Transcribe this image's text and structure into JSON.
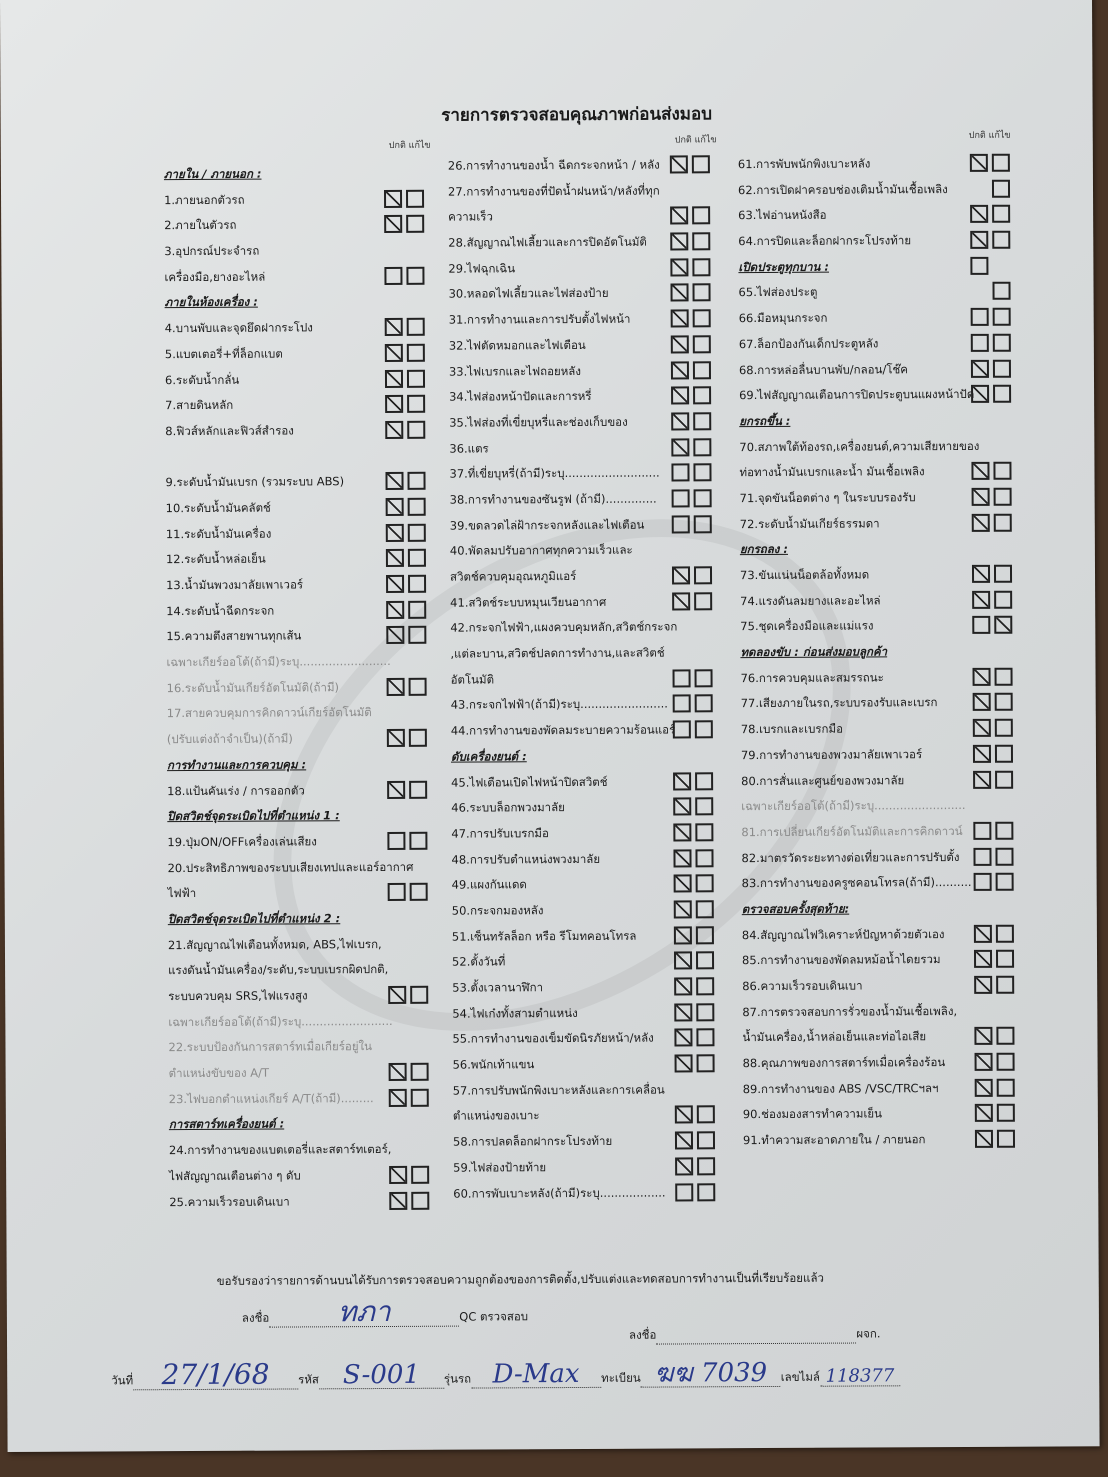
{
  "title": "รายการตรวจสอบคุณภาพก่อนส่งมอบ",
  "box_header": "ปกติ  แก้ไข",
  "columns": [
    {
      "rows": [
        {
          "t": "ภายใน / ภายนอก :",
          "s": "h",
          "b": null
        },
        {
          "t": "1.ภายนอกตัวรถ",
          "s": "",
          "b": [
            true,
            false
          ]
        },
        {
          "t": "2.ภายในตัวรถ",
          "s": "",
          "b": [
            true,
            false
          ]
        },
        {
          "t": "3.อุปกรณ์ประจำรถ",
          "s": "",
          "b": null
        },
        {
          "t": "เครื่องมือ,ยางอะไหล่",
          "s": "",
          "b": [
            false,
            false
          ]
        },
        {
          "t": "ภายในห้องเครื่อง :",
          "s": "h",
          "b": null
        },
        {
          "t": "4.บานพับและจุดยึดฝากระโปง",
          "s": "",
          "b": [
            true,
            false
          ]
        },
        {
          "t": "5.แบตเตอรี่+ที่ล็อกแบต",
          "s": "",
          "b": [
            true,
            false
          ]
        },
        {
          "t": "6.ระดับน้ำกลั่น",
          "s": "",
          "b": [
            true,
            false
          ]
        },
        {
          "t": "7.สายดินหลัก",
          "s": "",
          "b": [
            true,
            false
          ]
        },
        {
          "t": "8.ฟิวส์หลักและฟิวส์สำรอง",
          "s": "",
          "b": [
            true,
            false
          ]
        },
        {
          "t": "",
          "s": "",
          "b": null
        },
        {
          "t": "9.ระดับน้ำมันเบรก (รวมระบบ ABS)",
          "s": "",
          "b": [
            true,
            false
          ]
        },
        {
          "t": "10.ระดับน้ำมันคลัตช์",
          "s": "",
          "b": [
            true,
            false
          ]
        },
        {
          "t": "11.ระดับน้ำมันเครื่อง",
          "s": "",
          "b": [
            true,
            false
          ]
        },
        {
          "t": "12.ระดับน้ำหล่อเย็น",
          "s": "",
          "b": [
            true,
            false
          ]
        },
        {
          "t": "13.น้ำมันพวงมาลัยเพาเวอร์",
          "s": "",
          "b": [
            true,
            false
          ]
        },
        {
          "t": "14.ระดับน้ำฉีดกระจก",
          "s": "",
          "b": [
            true,
            false
          ]
        },
        {
          "t": "15.ความตึงสายพานทุกเส้น",
          "s": "",
          "b": [
            true,
            false
          ]
        },
        {
          "t": "เฉพาะเกียร์ออโต้(ถ้ามี)ระบุ.........................",
          "s": "g",
          "b": null
        },
        {
          "t": "16.ระดับน้ำมันเกียร์อัตโนมัติ(ถ้ามี)",
          "s": "g",
          "b": [
            true,
            false
          ]
        },
        {
          "t": "17.สายควบคุมการคิกดาวน์เกียร์อัตโนมัติ",
          "s": "g",
          "b": null
        },
        {
          "t": "(ปรับแต่งถ้าจำเป็น)(ถ้ามี)",
          "s": "g",
          "b": [
            true,
            false
          ]
        },
        {
          "t": "การทำงานและการควบคุม :",
          "s": "h",
          "b": null
        },
        {
          "t": "18.แป้นคันเร่ง / การออกตัว",
          "s": "",
          "b": [
            true,
            false
          ]
        },
        {
          "t": "ปิดสวิตช์จุดระเบิดไปที่ตำแหน่ง 1 :",
          "s": "h",
          "b": null
        },
        {
          "t": "19.ปุ่มON/OFFเครื่องเล่นเสียง",
          "s": "",
          "b": [
            false,
            false
          ]
        },
        {
          "t": "20.ประสิทธิภาพของระบบเสียงเทปและแอร์อากาศ",
          "s": "",
          "b": null
        },
        {
          "t": "ไฟฟ้า",
          "s": "",
          "b": [
            false,
            false
          ]
        },
        {
          "t": "ปิดสวิตช์จุดระเบิดไปที่ตำแหน่ง 2 :",
          "s": "h",
          "b": null
        },
        {
          "t": "21.สัญญาณไฟเตือนทั้งหมด, ABS,ไฟเบรก,",
          "s": "",
          "b": null
        },
        {
          "t": "แรงดันน้ำมันเครื่อง/ระดับ,ระบบเบรกผิดปกติ,",
          "s": "",
          "b": null
        },
        {
          "t": "ระบบควบคุม SRS,ไฟแรงสูง",
          "s": "",
          "b": [
            true,
            false
          ]
        },
        {
          "t": "เฉพาะเกียร์ออโต้(ถ้ามี)ระบุ.........................",
          "s": "g",
          "b": null
        },
        {
          "t": "22.ระบบป้องกันการสตาร์ทเมื่อเกียร์อยู่ใน",
          "s": "g",
          "b": null
        },
        {
          "t": "ตำแหน่งขับของ A/T",
          "s": "g",
          "b": [
            true,
            false
          ]
        },
        {
          "t": "23.ไฟบอกตำแหน่งเกียร์ A/T(ถ้ามี).........",
          "s": "g",
          "b": [
            true,
            false
          ]
        },
        {
          "t": "การสตาร์ทเครื่องยนต์ :",
          "s": "h",
          "b": null
        },
        {
          "t": "24.การทำงานของแบตเตอรี่และสตาร์ทเตอร์,",
          "s": "",
          "b": null
        },
        {
          "t": "ไฟสัญญาณเตือนต่าง ๆ ดับ",
          "s": "",
          "b": [
            true,
            false
          ]
        },
        {
          "t": "25.ความเร็วรอบเดินเบา",
          "s": "",
          "b": [
            true,
            false
          ]
        }
      ]
    },
    {
      "rows": [
        {
          "t": "26.การทำงานของน้ำ ฉีดกระจกหน้า / หลัง",
          "s": "",
          "b": [
            true,
            false
          ]
        },
        {
          "t": "27.การทำงานของที่ปัดน้ำฝนหน้า/หลังที่ทุก",
          "s": "",
          "b": null
        },
        {
          "t": "ความเร็ว",
          "s": "",
          "b": [
            true,
            false
          ]
        },
        {
          "t": "28.สัญญาณไฟเลี้ยวและการปิดอัตโนมัติ",
          "s": "",
          "b": [
            true,
            false
          ]
        },
        {
          "t": "29.ไฟฉุกเฉิน",
          "s": "",
          "b": [
            true,
            false
          ]
        },
        {
          "t": "30.หลอดไฟเลี้ยวและไฟส่องป้าย",
          "s": "",
          "b": [
            true,
            false
          ]
        },
        {
          "t": "31.การทำงานและการปรับตั้งไฟหน้า",
          "s": "",
          "b": [
            true,
            false
          ]
        },
        {
          "t": "32.ไฟตัดหมอกและไฟเตือน",
          "s": "",
          "b": [
            true,
            false
          ]
        },
        {
          "t": "33.ไฟเบรกและไฟถอยหลัง",
          "s": "",
          "b": [
            true,
            false
          ]
        },
        {
          "t": "34.ไฟส่องหน้าปัดและการหรี่",
          "s": "",
          "b": [
            true,
            false
          ]
        },
        {
          "t": "35.ไฟส่องที่เขี่ยบุหรี่และช่องเก็บของ",
          "s": "",
          "b": [
            true,
            false
          ]
        },
        {
          "t": "36.แตร",
          "s": "",
          "b": [
            true,
            false
          ]
        },
        {
          "t": "37.ที่เขี่ยบุหรี่(ถ้ามี)ระบุ..........................",
          "s": "",
          "b": [
            false,
            false
          ]
        },
        {
          "t": "38.การทำงานของซันรูฟ (ถ้ามี)..............",
          "s": "",
          "b": [
            false,
            false
          ]
        },
        {
          "t": "39.ขดลวดไล่ฝ้ากระจกหลังและไฟเตือน",
          "s": "",
          "b": [
            false,
            false
          ]
        },
        {
          "t": "40.พัดลมปรับอากาศทุกความเร็วและ",
          "s": "",
          "b": null
        },
        {
          "t": "สวิตช์ควบคุมอุณหภูมิแอร์",
          "s": "",
          "b": [
            true,
            false
          ]
        },
        {
          "t": "41.สวิตช์ระบบหมุนเวียนอากาศ",
          "s": "",
          "b": [
            true,
            false
          ]
        },
        {
          "t": "42.กระจกไฟฟ้า,แผงควบคุมหลัก,สวิตช์กระจก",
          "s": "",
          "b": null
        },
        {
          "t": ",แต่ละบาน,สวิตช์ปลดการทำงาน,และสวิตช์",
          "s": "",
          "b": null
        },
        {
          "t": "อัตโนมัติ",
          "s": "",
          "b": [
            false,
            false
          ]
        },
        {
          "t": "43.กระจกไฟฟ้า(ถ้ามี)ระบุ........................",
          "s": "",
          "b": [
            false,
            false
          ]
        },
        {
          "t": "44.การทำงานของพัดลมระบายความร้อนแอร์",
          "s": "",
          "b": [
            false,
            false
          ]
        },
        {
          "t": "ดับเครื่องยนต์ :",
          "s": "h",
          "b": null
        },
        {
          "t": "45.ไฟเตือนเปิดไฟหน้าปิดสวิตช์",
          "s": "",
          "b": [
            true,
            false
          ]
        },
        {
          "t": "46.ระบบล็อกพวงมาลัย",
          "s": "",
          "b": [
            true,
            false
          ]
        },
        {
          "t": "47.การปรับเบรกมือ",
          "s": "",
          "b": [
            true,
            false
          ]
        },
        {
          "t": "48.การปรับตำแหน่งพวงมาลัย",
          "s": "",
          "b": [
            true,
            false
          ]
        },
        {
          "t": "49.แผงกันแดด",
          "s": "",
          "b": [
            true,
            false
          ]
        },
        {
          "t": "50.กระจกมองหลัง",
          "s": "",
          "b": [
            true,
            false
          ]
        },
        {
          "t": "51.เซ็นทรัลล็อก หรือ รีโมทคอนโทรล",
          "s": "",
          "b": [
            true,
            false
          ]
        },
        {
          "t": "52.ตั้งวันที่",
          "s": "",
          "b": [
            true,
            false
          ]
        },
        {
          "t": "53.ตั้งเวลานาฬิกา",
          "s": "",
          "b": [
            true,
            false
          ]
        },
        {
          "t": "54.ไฟเก๋งทั้งสามตำแหน่ง",
          "s": "",
          "b": [
            true,
            false
          ]
        },
        {
          "t": "55.การทำงานของเข็มขัดนิรภัยหน้า/หลัง",
          "s": "",
          "b": [
            true,
            false
          ]
        },
        {
          "t": "56.พนักเท้าแขน",
          "s": "",
          "b": [
            true,
            false
          ]
        },
        {
          "t": "57.การปรับพนักพิงเบาะหลังและการเคลื่อน",
          "s": "",
          "b": null
        },
        {
          "t": "ตำแหน่งของเบาะ",
          "s": "",
          "b": [
            true,
            false
          ]
        },
        {
          "t": "58.การปลดล็อกฝากระโปรงท้าย",
          "s": "",
          "b": [
            true,
            false
          ]
        },
        {
          "t": "59.ไฟส่องป้ายท้าย",
          "s": "",
          "b": [
            true,
            false
          ]
        },
        {
          "t": "60.การพับเบาะหลัง(ถ้ามี)ระบุ..................",
          "s": "",
          "b": [
            false,
            false
          ]
        }
      ]
    },
    {
      "rows": [
        {
          "t": "61.การพับพนักพิงเบาะหลัง",
          "s": "",
          "b": [
            true,
            false
          ]
        },
        {
          "t": "62.การเปิดฝาครอบช่องเติมน้ำมันเชื้อเพลิง",
          "s": "",
          "b": [
            null,
            false
          ]
        },
        {
          "t": "63.ไฟอ่านหนังสือ",
          "s": "",
          "b": [
            true,
            false
          ]
        },
        {
          "t": "64.การปิดและล็อกฝากระโปรงท้าย",
          "s": "",
          "b": [
            true,
            false
          ]
        },
        {
          "t": "เปิดประตูทุกบาน :",
          "s": "h",
          "b": [
            false,
            null
          ]
        },
        {
          "t": "65.ไฟส่องประตู",
          "s": "",
          "b": [
            null,
            false
          ]
        },
        {
          "t": "66.มือหมุนกระจก",
          "s": "",
          "b": [
            false,
            false
          ]
        },
        {
          "t": "67.ล็อกป้องกันเด็กประตูหลัง",
          "s": "",
          "b": [
            false,
            false
          ]
        },
        {
          "t": "68.การหล่อลื่นบานพับ/กลอน/โช๊ค",
          "s": "",
          "b": [
            true,
            false
          ]
        },
        {
          "t": "69.ไฟสัญญาณเตือนการปิดประตูบนแผงหน้าปัด",
          "s": "",
          "b": [
            true,
            false
          ]
        },
        {
          "t": "ยกรถขึ้น :",
          "s": "h",
          "b": null
        },
        {
          "t": "70.สภาพใต้ท้องรถ,เครื่องยนต์,ความเสียหายของ",
          "s": "",
          "b": null
        },
        {
          "t": "ท่อทางน้ำมันเบรกและน้ำ มันเชื้อเพลิง",
          "s": "",
          "b": [
            true,
            false
          ]
        },
        {
          "t": "71.จุดขันน็อตต่าง ๆ ในระบบรองรับ",
          "s": "",
          "b": [
            true,
            false
          ]
        },
        {
          "t": "72.ระดับน้ำมันเกียร์ธรรมดา",
          "s": "",
          "b": [
            true,
            false
          ]
        },
        {
          "t": "ยกรถลง :",
          "s": "h",
          "b": null
        },
        {
          "t": "73.ขันแน่นน็อตล้อทั้งหมด",
          "s": "",
          "b": [
            true,
            false
          ]
        },
        {
          "t": "74.แรงดันลมยางและอะไหล่",
          "s": "",
          "b": [
            true,
            false
          ]
        },
        {
          "t": "75.ชุดเครื่องมือและแม่แรง",
          "s": "",
          "b": [
            false,
            true
          ]
        },
        {
          "t": "ทดลองขับ : ก่อนส่งมอบลูกค้า",
          "s": "h",
          "b": null
        },
        {
          "t": "76.การควบคุมและสมรรถนะ",
          "s": "",
          "b": [
            true,
            false
          ]
        },
        {
          "t": "77.เสียงภายในรถ,ระบบรองรับและเบรก",
          "s": "",
          "b": [
            true,
            false
          ]
        },
        {
          "t": "78.เบรกและเบรกมือ",
          "s": "",
          "b": [
            true,
            false
          ]
        },
        {
          "t": "79.การทำงานของพวงมาลัยเพาเวอร์",
          "s": "",
          "b": [
            true,
            false
          ]
        },
        {
          "t": "80.การสั่นและศูนย์ของพวงมาลัย",
          "s": "",
          "b": [
            true,
            false
          ]
        },
        {
          "t": "เฉพาะเกียร์ออโต้(ถ้ามี)ระบุ.........................",
          "s": "g",
          "b": null
        },
        {
          "t": "81.การเปลี่ยนเกียร์อัตโนมัติและการคิกดาวน์",
          "s": "g",
          "b": [
            false,
            false
          ]
        },
        {
          "t": "82.มาตรวัดระยะทางต่อเที่ยวและการปรับตั้ง",
          "s": "",
          "b": [
            false,
            false
          ]
        },
        {
          "t": "83.การทำงานของครูซคอนโทรล(ถ้ามี)..........",
          "s": "",
          "b": [
            false,
            false
          ]
        },
        {
          "t": "ตรวจสอบครั้งสุดท้าย:",
          "s": "h",
          "b": null
        },
        {
          "t": "84.สัญญาณไฟวิเคราะห์ปัญหาด้วยตัวเอง",
          "s": "",
          "b": [
            true,
            false
          ]
        },
        {
          "t": "85.การทำงานของพัดลมหม้อน้ำไดยรวม",
          "s": "",
          "b": [
            true,
            false
          ]
        },
        {
          "t": "86.ความเร็วรอบเดินเบา",
          "s": "",
          "b": [
            true,
            false
          ]
        },
        {
          "t": "87.การตรวจสอบการรั่วของน้ำมันเชื้อเพลิง,",
          "s": "",
          "b": null
        },
        {
          "t": "น้ำมันเครื่อง,น้ำหล่อเย็นและท่อไอเสีย",
          "s": "",
          "b": [
            true,
            false
          ]
        },
        {
          "t": "88.คุณภาพของการสตาร์ทเมื่อเครื่องร้อน",
          "s": "",
          "b": [
            true,
            false
          ]
        },
        {
          "t": "89.การทำงานของ ABS /VSC/TRCฯลฯ",
          "s": "",
          "b": [
            true,
            false
          ]
        },
        {
          "t": "90.ช่องมองสารทำความเย็น",
          "s": "",
          "b": [
            true,
            false
          ]
        },
        {
          "t": "91.ทำความสะอาดภายใน / ภายนอก",
          "s": "",
          "b": [
            true,
            false
          ]
        }
      ]
    }
  ],
  "footer": {
    "certification": "ขอรับรองว่ารายการด้านบนได้รับการตรวจสอบความถูกต้องของการติดตั้ง,ปรับแต่งและทดสอบการทำงานเป็นที่เรียบร้อยแล้ว",
    "sign_label": "ลงชื่อ",
    "qc_label": "QC ตรวจสอบ",
    "sign_label_2": "ลงชื่อ",
    "manager_label": "ผจก.",
    "qc_signature": "ทภา",
    "date_label": "วันที่",
    "date_value": "27/1/68",
    "code_label": "รหัส",
    "code_value": "S-001",
    "model_label": "รุ่นรถ",
    "model_value": "D-Max",
    "plate_label": "ทะเบียน",
    "plate_value": "ฆฆ 7039",
    "mileage_label": "เลขไมล์",
    "mileage_value": "118377"
  }
}
